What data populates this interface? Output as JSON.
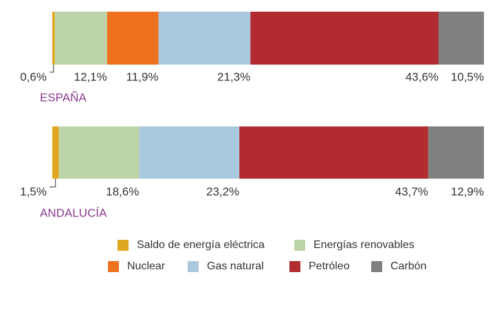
{
  "chart_data": {
    "type": "stacked-bar-horizontal",
    "categories": [
      "ESPAÑA",
      "ANDALUCÍA"
    ],
    "series": [
      {
        "name": "Saldo de energía eléctrica",
        "color": "#e0a820",
        "values": [
          0.6,
          1.5
        ],
        "value_labels": [
          "0,6%",
          "1,5%"
        ]
      },
      {
        "name": "Energías renovables",
        "color": "#bcd4a8",
        "values": [
          12.1,
          18.6
        ],
        "value_labels": [
          "12,1%",
          "18,6%"
        ]
      },
      {
        "name": "Nuclear",
        "color": "#ee711f",
        "values": [
          11.9,
          0
        ],
        "value_labels": [
          "11,9%",
          null
        ]
      },
      {
        "name": "Gas natural",
        "color": "#a9c8dd",
        "values": [
          21.3,
          23.2
        ],
        "value_labels": [
          "21,3%",
          "23,2%"
        ]
      },
      {
        "name": "Petróleo",
        "color": "#b22b31",
        "values": [
          43.6,
          43.7
        ],
        "value_labels": [
          "43,6%",
          "43,7%"
        ]
      },
      {
        "name": "Carbón",
        "color": "#808080",
        "values": [
          10.5,
          12.9
        ],
        "value_labels": [
          "10,5%",
          "12,9%"
        ]
      }
    ]
  }
}
